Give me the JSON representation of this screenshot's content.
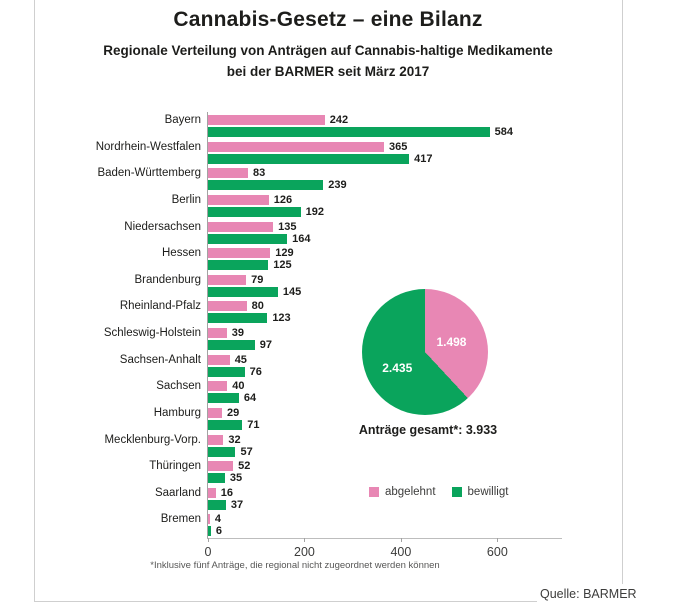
{
  "title": "Cannabis-Gesetz – eine Bilanz",
  "subtitle": {
    "line1": "Regionale Verteilung von Anträgen auf Cannabis-haltige Medikamente",
    "line2": "bei der BARMER seit März 2017"
  },
  "colors": {
    "abgelehnt": "#e887b4",
    "bewilligt": "#0fa45c",
    "text": "#1d1d1b",
    "axis": "#a3a3a3",
    "frame": "#cfcfcf"
  },
  "chart_data": [
    {
      "type": "bar",
      "orientation": "horizontal",
      "categories": [
        "Bayern",
        "Nordrhein-Westfalen",
        "Baden-Württemberg",
        "Berlin",
        "Niedersachsen",
        "Hessen",
        "Brandenburg",
        "Rheinland-Pfalz",
        "Schleswig-Holstein",
        "Sachsen-Anhalt",
        "Sachsen",
        "Hamburg",
        "Mecklenburg-Vorp.",
        "Thüringen",
        "Saarland",
        "Bremen"
      ],
      "series": [
        {
          "name": "abgelehnt",
          "color": "#e887b4",
          "values": [
            242,
            365,
            83,
            126,
            135,
            129,
            79,
            80,
            39,
            45,
            40,
            29,
            32,
            52,
            16,
            4
          ]
        },
        {
          "name": "bewilligt",
          "color": "#0aa45c",
          "values": [
            584,
            417,
            239,
            192,
            164,
            125,
            145,
            123,
            97,
            76,
            64,
            71,
            57,
            35,
            37,
            6
          ]
        }
      ],
      "xticks": [
        0,
        200,
        400,
        600
      ],
      "xlim": [
        0,
        734
      ],
      "grid": false,
      "value_labels": true
    },
    {
      "type": "pie",
      "labels": [
        "abgelehnt",
        "bewilligt"
      ],
      "values": [
        1498,
        2435
      ],
      "value_labels": [
        "1.498",
        "2.435"
      ],
      "colors": [
        "#e887b4",
        "#0aa45c"
      ],
      "start_angle_deg": 0,
      "direction": "clockwise"
    }
  ],
  "total_label": "Anträge gesamt*: 3.933",
  "legend": {
    "items": [
      {
        "label": "abgelehnt",
        "color": "#e887b4"
      },
      {
        "label": "bewilligt",
        "color": "#0aa45c"
      }
    ]
  },
  "footnote": "*Inklusive fünf Anträge, die regional nicht zugeordnet werden können",
  "source": "Quelle: BARMER"
}
